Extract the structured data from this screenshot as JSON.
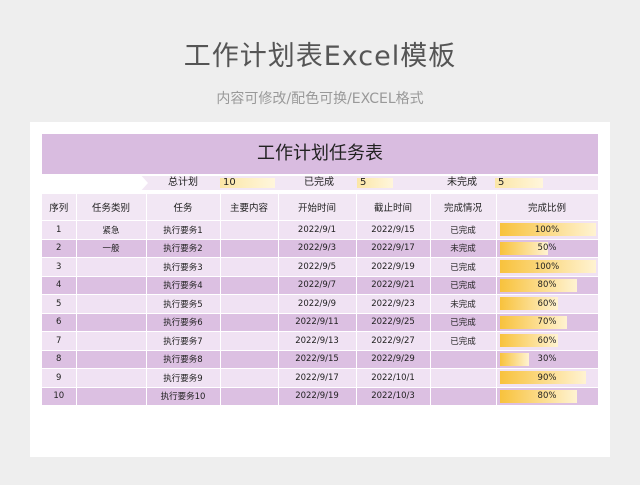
{
  "header": {
    "title": "工作计划表Excel模板",
    "subtitle": "内容可修改/配色可换/EXCEL格式"
  },
  "sheet": {
    "banner_title": "工作计划任务表",
    "summary": {
      "total_label": "总计划",
      "total_value": "10",
      "done_label": "已完成",
      "done_value": "5",
      "undone_label": "未完成",
      "undone_value": "5"
    },
    "columns": [
      "序列",
      "任务类别",
      "任务",
      "主要内容",
      "开始时间",
      "截止时间",
      "完成情况",
      "完成比例"
    ],
    "rows": [
      {
        "seq": "1",
        "category": "紧急",
        "task": "执行要务1",
        "content": "",
        "start": "2022/9/1",
        "end": "2022/9/15",
        "status": "已完成",
        "pct": "100%",
        "fill": 1.0
      },
      {
        "seq": "2",
        "category": "一般",
        "task": "执行要务2",
        "content": "",
        "start": "2022/9/3",
        "end": "2022/9/17",
        "status": "未完成",
        "pct": "50%",
        "fill": 0.5
      },
      {
        "seq": "3",
        "category": "",
        "task": "执行要务3",
        "content": "",
        "start": "2022/9/5",
        "end": "2022/9/19",
        "status": "已完成",
        "pct": "100%",
        "fill": 1.0
      },
      {
        "seq": "4",
        "category": "",
        "task": "执行要务4",
        "content": "",
        "start": "2022/9/7",
        "end": "2022/9/21",
        "status": "已完成",
        "pct": "80%",
        "fill": 0.8
      },
      {
        "seq": "5",
        "category": "",
        "task": "执行要务5",
        "content": "",
        "start": "2022/9/9",
        "end": "2022/9/23",
        "status": "未完成",
        "pct": "60%",
        "fill": 0.6
      },
      {
        "seq": "6",
        "category": "",
        "task": "执行要务6",
        "content": "",
        "start": "2022/9/11",
        "end": "2022/9/25",
        "status": "已完成",
        "pct": "70%",
        "fill": 0.7
      },
      {
        "seq": "7",
        "category": "",
        "task": "执行要务7",
        "content": "",
        "start": "2022/9/13",
        "end": "2022/9/27",
        "status": "已完成",
        "pct": "60%",
        "fill": 0.6
      },
      {
        "seq": "8",
        "category": "",
        "task": "执行要务8",
        "content": "",
        "start": "2022/9/15",
        "end": "2022/9/29",
        "status": "",
        "pct": "30%",
        "fill": 0.3
      },
      {
        "seq": "9",
        "category": "",
        "task": "执行要务9",
        "content": "",
        "start": "2022/9/17",
        "end": "2022/10/1",
        "status": "",
        "pct": "90%",
        "fill": 0.9
      },
      {
        "seq": "10",
        "category": "",
        "task": "执行要务10",
        "content": "",
        "start": "2022/9/19",
        "end": "2022/10/3",
        "status": "",
        "pct": "80%",
        "fill": 0.8
      }
    ]
  },
  "colors": {
    "banner": "#d9bce0",
    "row_light": "#f0e2f3",
    "row_dark": "#dcc0e2",
    "bar_start": "#f8c23c",
    "bar_end": "#fff3d2"
  }
}
